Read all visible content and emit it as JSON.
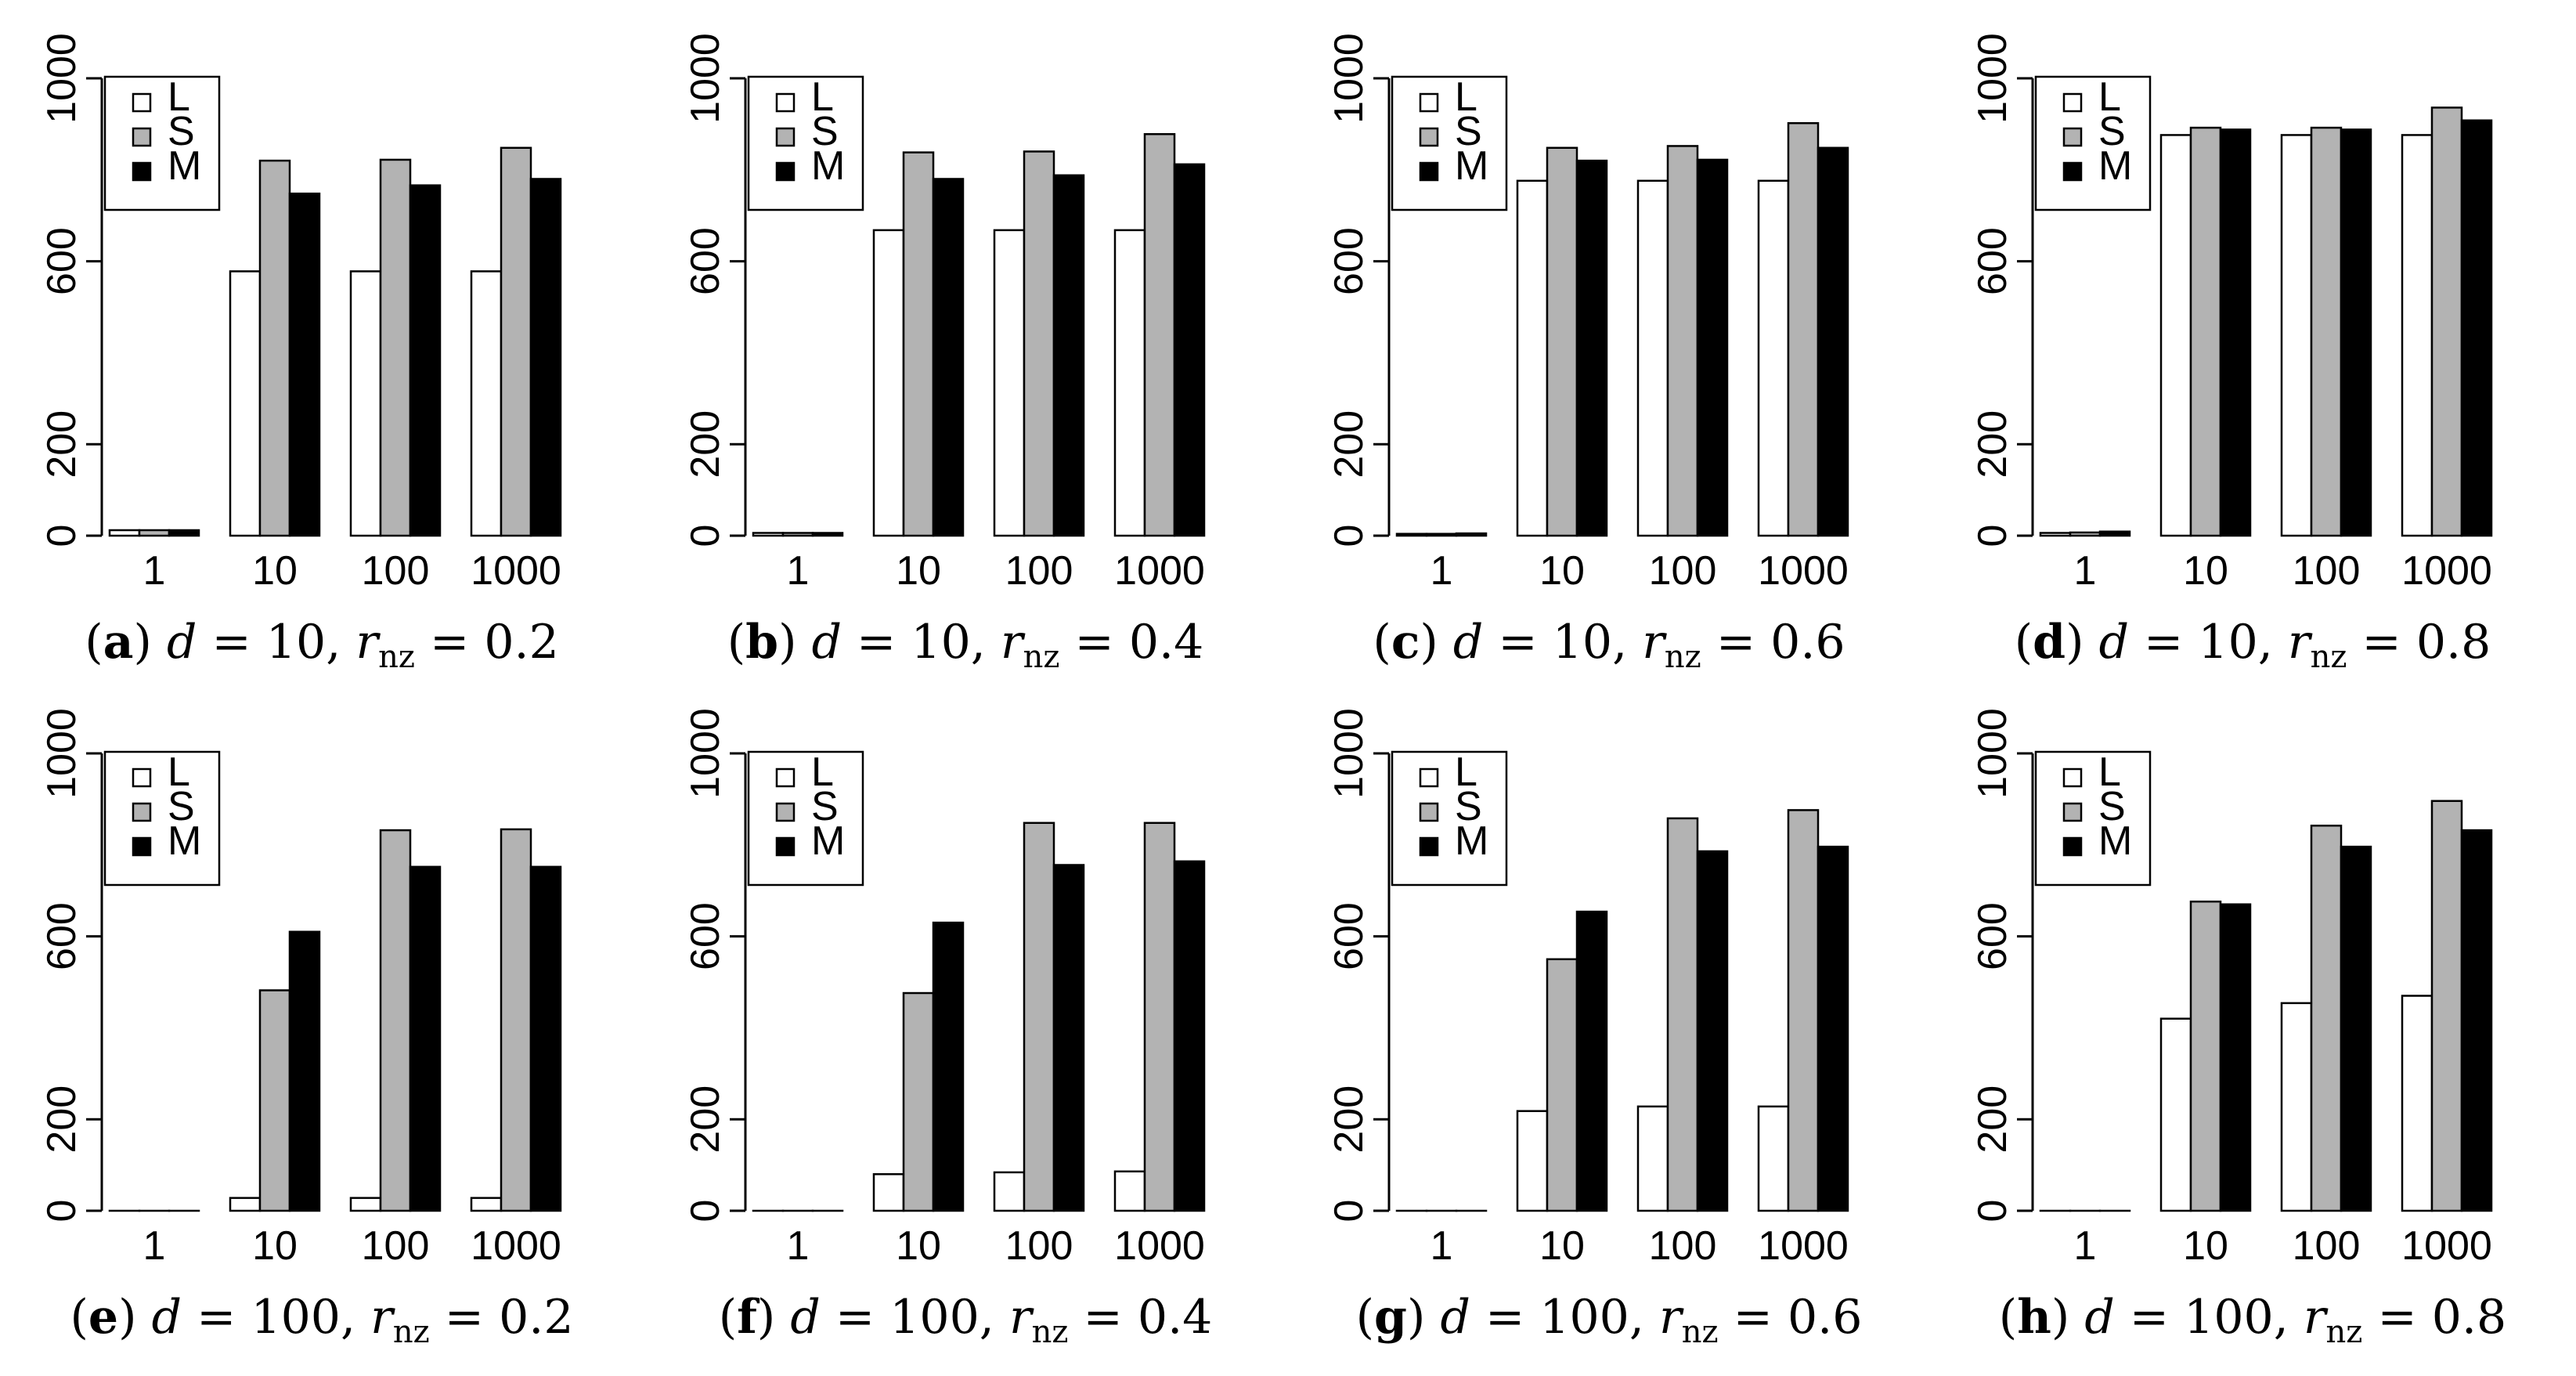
{
  "colors": {
    "L": "#ffffff",
    "S": "#b3b3b3",
    "M": "#000000",
    "stroke": "#000000"
  },
  "chart_data": [
    {
      "type": "bar",
      "panel_letter": "a",
      "caption_math_lhs": "d",
      "caption_d_value": "10",
      "caption_r_symbol": "r",
      "caption_r_subscript": "nz",
      "caption_r_value": "0.2",
      "categories": [
        "1",
        "10",
        "100",
        "1000"
      ],
      "series": [
        {
          "name": "L",
          "values": [
            12,
            578,
            578,
            578
          ]
        },
        {
          "name": "S",
          "values": [
            12,
            820,
            822,
            848
          ]
        },
        {
          "name": "M",
          "values": [
            12,
            748,
            766,
            780
          ]
        }
      ],
      "ylim": [
        0,
        1000
      ],
      "yticks": [
        "0",
        "200",
        "600",
        "1000"
      ],
      "xlabel": "",
      "ylabel": "",
      "legend": "top-left"
    },
    {
      "type": "bar",
      "panel_letter": "b",
      "caption_math_lhs": "d",
      "caption_d_value": "10",
      "caption_r_symbol": "r",
      "caption_r_subscript": "nz",
      "caption_r_value": "0.4",
      "categories": [
        "1",
        "10",
        "100",
        "1000"
      ],
      "series": [
        {
          "name": "L",
          "values": [
            6,
            668,
            668,
            668
          ]
        },
        {
          "name": "S",
          "values": [
            6,
            838,
            840,
            878
          ]
        },
        {
          "name": "M",
          "values": [
            6,
            780,
            788,
            812
          ]
        }
      ],
      "ylim": [
        0,
        1000
      ],
      "yticks": [
        "0",
        "200",
        "600",
        "1000"
      ],
      "xlabel": "",
      "ylabel": "",
      "legend": "top-left"
    },
    {
      "type": "bar",
      "panel_letter": "c",
      "caption_math_lhs": "d",
      "caption_d_value": "10",
      "caption_r_symbol": "r",
      "caption_r_subscript": "nz",
      "caption_r_value": "0.6",
      "categories": [
        "1",
        "10",
        "100",
        "1000"
      ],
      "series": [
        {
          "name": "L",
          "values": [
            4,
            776,
            776,
            776
          ]
        },
        {
          "name": "S",
          "values": [
            4,
            848,
            852,
            902
          ]
        },
        {
          "name": "M",
          "values": [
            5,
            820,
            822,
            848
          ]
        }
      ],
      "ylim": [
        0,
        1000
      ],
      "yticks": [
        "0",
        "200",
        "600",
        "1000"
      ],
      "xlabel": "",
      "ylabel": "",
      "legend": "top-left"
    },
    {
      "type": "bar",
      "panel_letter": "d",
      "caption_math_lhs": "d",
      "caption_d_value": "10",
      "caption_r_symbol": "r",
      "caption_r_subscript": "nz",
      "caption_r_value": "0.8",
      "categories": [
        "1",
        "10",
        "100",
        "1000"
      ],
      "series": [
        {
          "name": "L",
          "values": [
            6,
            876,
            876,
            876
          ]
        },
        {
          "name": "S",
          "values": [
            7,
            892,
            892,
            936
          ]
        },
        {
          "name": "M",
          "values": [
            9,
            888,
            888,
            908
          ]
        }
      ],
      "ylim": [
        0,
        1000
      ],
      "yticks": [
        "0",
        "200",
        "600",
        "1000"
      ],
      "xlabel": "",
      "ylabel": "",
      "legend": "top-left"
    },
    {
      "type": "bar",
      "panel_letter": "e",
      "caption_math_lhs": "d",
      "caption_d_value": "100",
      "caption_r_symbol": "r",
      "caption_r_subscript": "nz",
      "caption_r_value": "0.2",
      "categories": [
        "1",
        "10",
        "100",
        "1000"
      ],
      "series": [
        {
          "name": "L",
          "values": [
            0,
            28,
            28,
            28
          ]
        },
        {
          "name": "S",
          "values": [
            0,
            482,
            832,
            834
          ]
        },
        {
          "name": "M",
          "values": [
            0,
            610,
            752,
            752
          ]
        }
      ],
      "ylim": [
        0,
        1000
      ],
      "yticks": [
        "0",
        "200",
        "600",
        "1000"
      ],
      "xlabel": "",
      "ylabel": "",
      "legend": "top-left"
    },
    {
      "type": "bar",
      "panel_letter": "f",
      "caption_math_lhs": "d",
      "caption_d_value": "100",
      "caption_r_symbol": "r",
      "caption_r_subscript": "nz",
      "caption_r_value": "0.4",
      "categories": [
        "1",
        "10",
        "100",
        "1000"
      ],
      "series": [
        {
          "name": "L",
          "values": [
            0,
            80,
            84,
            86
          ]
        },
        {
          "name": "S",
          "values": [
            0,
            476,
            848,
            848
          ]
        },
        {
          "name": "M",
          "values": [
            0,
            630,
            756,
            764
          ]
        }
      ],
      "ylim": [
        0,
        1000
      ],
      "yticks": [
        "0",
        "200",
        "600",
        "1000"
      ],
      "xlabel": "",
      "ylabel": "",
      "legend": "top-left"
    },
    {
      "type": "bar",
      "panel_letter": "g",
      "caption_math_lhs": "d",
      "caption_d_value": "100",
      "caption_r_symbol": "r",
      "caption_r_subscript": "nz",
      "caption_r_value": "0.6",
      "categories": [
        "1",
        "10",
        "100",
        "1000"
      ],
      "series": [
        {
          "name": "L",
          "values": [
            0,
            218,
            228,
            228
          ]
        },
        {
          "name": "S",
          "values": [
            0,
            550,
            858,
            876
          ]
        },
        {
          "name": "M",
          "values": [
            0,
            654,
            786,
            796
          ]
        }
      ],
      "ylim": [
        0,
        1000
      ],
      "yticks": [
        "0",
        "200",
        "600",
        "1000"
      ],
      "xlabel": "",
      "ylabel": "",
      "legend": "top-left"
    },
    {
      "type": "bar",
      "panel_letter": "h",
      "caption_math_lhs": "d",
      "caption_d_value": "100",
      "caption_r_symbol": "r",
      "caption_r_subscript": "nz",
      "caption_r_value": "0.8",
      "categories": [
        "1",
        "10",
        "100",
        "1000"
      ],
      "series": [
        {
          "name": "L",
          "values": [
            0,
            420,
            454,
            470
          ]
        },
        {
          "name": "S",
          "values": [
            0,
            676,
            842,
            896
          ]
        },
        {
          "name": "M",
          "values": [
            0,
            670,
            796,
            832
          ]
        }
      ],
      "ylim": [
        0,
        1000
      ],
      "yticks": [
        "0",
        "200",
        "600",
        "1000"
      ],
      "xlabel": "",
      "ylabel": "",
      "legend": "top-left"
    }
  ]
}
